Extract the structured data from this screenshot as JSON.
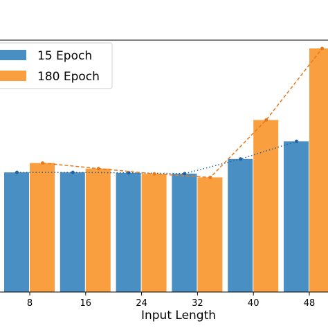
{
  "chart_data": {
    "type": "bar",
    "title": "",
    "xlabel": "Input Length",
    "ylabel": "",
    "categories": [
      "8",
      "16",
      "24",
      "32",
      "40",
      "48"
    ],
    "ylim": [
      0,
      100
    ],
    "grid": false,
    "legend_position": "top-left",
    "series": [
      {
        "name": "15 Epoch",
        "color": "#4a8fc4",
        "line_color": "#1f5fa0",
        "line_style": "dotted",
        "values": [
          47.5,
          47.5,
          47.3,
          47.0,
          52.8,
          59.8
        ]
      },
      {
        "name": "180 Epoch",
        "color": "#f99f40",
        "line_color": "#e8781c",
        "line_style": "dashed",
        "values": [
          51.2,
          49.0,
          46.9,
          45.5,
          68.3,
          96.7
        ]
      }
    ]
  }
}
